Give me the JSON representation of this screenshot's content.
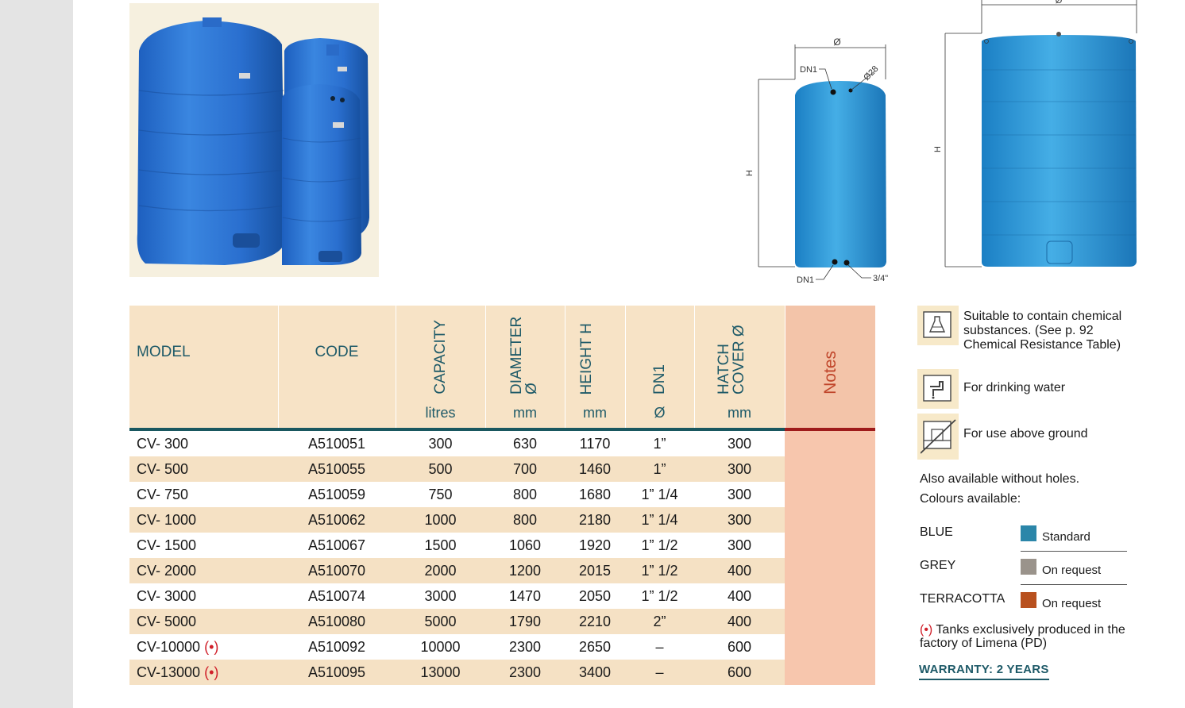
{
  "table": {
    "headers": {
      "model": "MODEL",
      "code": "CODE",
      "capacity": "CAPACITY",
      "diameter": "DIAMETER Ø",
      "height": "HEIGHT H",
      "dn1": "DN1",
      "hatch": "HATCH COVER Ø",
      "notes": "Notes"
    },
    "units": {
      "capacity": "litres",
      "diameter": "mm",
      "height": "mm",
      "dn1": "Ø",
      "hatch": "mm"
    },
    "rows": [
      {
        "model": "CV- 300",
        "code": "A510051",
        "capacity": "300",
        "diameter": "630",
        "height": "1170",
        "dn1": "1”",
        "hatch": "300"
      },
      {
        "model": "CV- 500",
        "code": "A510055",
        "capacity": "500",
        "diameter": "700",
        "height": "1460",
        "dn1": "1”",
        "hatch": "300"
      },
      {
        "model": "CV- 750",
        "code": "A510059",
        "capacity": "750",
        "diameter": "800",
        "height": "1680",
        "dn1": "1” 1/4",
        "hatch": "300"
      },
      {
        "model": "CV- 1000",
        "code": "A510062",
        "capacity": "1000",
        "diameter": "800",
        "height": "2180",
        "dn1": "1” 1/4",
        "hatch": "300"
      },
      {
        "model": "CV- 1500",
        "code": "A510067",
        "capacity": "1500",
        "diameter": "1060",
        "height": "1920",
        "dn1": "1” 1/2",
        "hatch": "300"
      },
      {
        "model": "CV- 2000",
        "code": "A510070",
        "capacity": "2000",
        "diameter": "1200",
        "height": "2015",
        "dn1": "1” 1/2",
        "hatch": "400"
      },
      {
        "model": "CV- 3000",
        "code": "A510074",
        "capacity": "3000",
        "diameter": "1470",
        "height": "2050",
        "dn1": "1” 1/2",
        "hatch": "400"
      },
      {
        "model": "CV- 5000",
        "code": "A510080",
        "capacity": "5000",
        "diameter": "1790",
        "height": "2210",
        "dn1": "2”",
        "hatch": "400"
      },
      {
        "model": "CV-10000",
        "code": "A510092",
        "capacity": "10000",
        "diameter": "2300",
        "height": "2650",
        "dn1": "–",
        "hatch": "600",
        "marker": "(•)"
      },
      {
        "model": "CV-13000",
        "code": "A510095",
        "capacity": "13000",
        "diameter": "2300",
        "height": "3400",
        "dn1": "–",
        "hatch": "600",
        "marker": "(•)"
      }
    ]
  },
  "drawing_small": {
    "diameter_label": "Ø",
    "height_label": "H",
    "top_fitting": "DN1",
    "vent": "Ø28",
    "bottom_fitting": "DN1",
    "drain": "3/4\""
  },
  "drawing_large": {
    "height_label": "H",
    "diameter_label": "Ø"
  },
  "features": [
    {
      "icon": "chemical-flask-icon",
      "text": "Suitable to contain chemical substances. (See p. 92 Chemical Resistance Table)"
    },
    {
      "icon": "drinking-tap-icon",
      "text": "For drinking water"
    },
    {
      "icon": "above-ground-icon",
      "text": "For use above ground"
    }
  ],
  "also_available": "Also available without holes.",
  "colours_label": "Colours available:",
  "colours": [
    {
      "name": "BLUE",
      "status": "Standard",
      "color": "#2b86a9"
    },
    {
      "name": "GREY",
      "status": "On request",
      "color": "#9a938b"
    },
    {
      "name": "TERRACOTTA",
      "status": "On request",
      "color": "#b8501e"
    }
  ],
  "exclusive_marker": "(•)",
  "exclusive_note": "Tanks exclusively produced in the factory of Limena (PD)",
  "warranty": "WARRANTY: 2 YEARS"
}
